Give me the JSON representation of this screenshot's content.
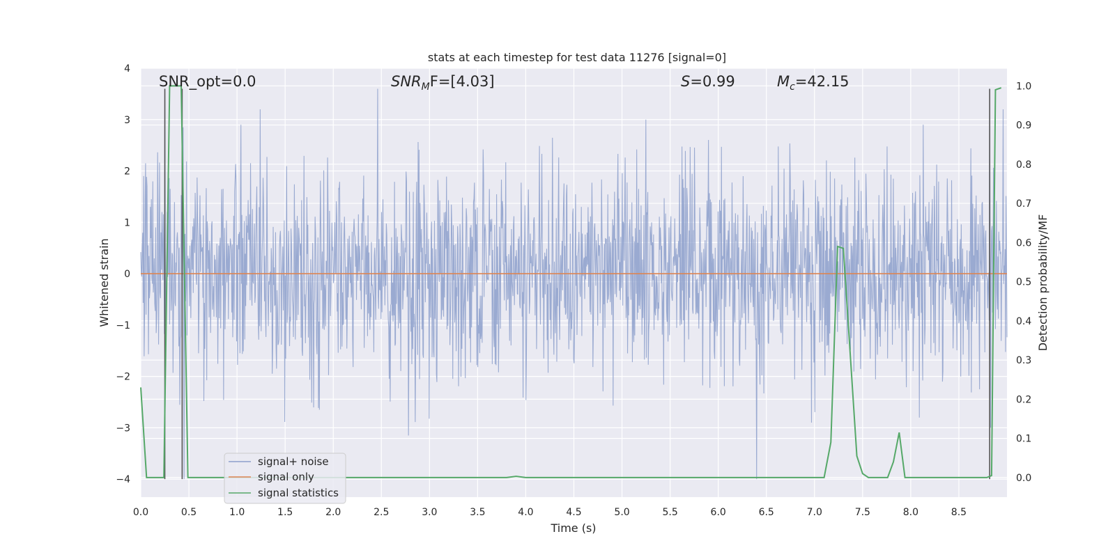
{
  "chart_data": {
    "type": "line",
    "title": "stats at each timestep for test data 11276 [signal=0]",
    "xlabel": "Time (s)",
    "ylabel": "Whitened strain",
    "ylabel_right": "Detection probability/MF",
    "xlim": [
      0.0,
      9.0
    ],
    "ylim": [
      -4.35,
      4.0
    ],
    "ylim_right": [
      -0.05,
      1.045
    ],
    "x_ticks": [
      "0.0",
      "0.5",
      "1.0",
      "1.5",
      "2.0",
      "2.5",
      "3.0",
      "3.5",
      "4.0",
      "4.5",
      "5.0",
      "5.5",
      "6.0",
      "6.5",
      "7.0",
      "7.5",
      "8.0",
      "8.5"
    ],
    "y_ticks": [
      "4",
      "3",
      "2",
      "1",
      "0",
      "−1",
      "−2",
      "−3",
      "−4"
    ],
    "y_ticks_right": [
      "1.0",
      "0.9",
      "0.8",
      "0.7",
      "0.6",
      "0.5",
      "0.4",
      "0.3",
      "0.2",
      "0.1",
      "0.0"
    ],
    "grid": true,
    "legend_position": "lower-left",
    "annotations": {
      "snr_opt": "SNR_opt=0.0",
      "snr_mf_prefix": "SNR",
      "snr_mf_sub": "M",
      "snr_mf_suffix": "F=[4.03]",
      "s_prefix": "S",
      "s_suffix": "=0.99",
      "mc_prefix": "M",
      "mc_sub": "c",
      "mc_suffix": "=42.15"
    },
    "series": [
      {
        "name": "signal+ noise",
        "axis": "left",
        "color": "#8c9fcb",
        "noise_amplitude": 1.3,
        "spikes": [
          [
            0.22,
            1.2
          ],
          [
            0.25,
            3.6
          ],
          [
            0.44,
            2.85
          ],
          [
            0.45,
            -4.0
          ],
          [
            1.24,
            3.2
          ],
          [
            2.46,
            3.6
          ],
          [
            2.78,
            -3.15
          ],
          [
            5.25,
            3.0
          ],
          [
            6.4,
            -4.0
          ],
          [
            7.32,
            -0.9
          ],
          [
            8.82,
            3.6
          ],
          [
            8.83,
            -3.0
          ],
          [
            8.96,
            3.2
          ]
        ]
      },
      {
        "name": "signal only",
        "axis": "left",
        "color": "#dd8452",
        "x": [
          0.0,
          9.0
        ],
        "values": [
          0.0,
          0.0
        ]
      },
      {
        "name": "signal statistics",
        "axis": "right",
        "color": "#55a868",
        "x": [
          0.0,
          0.06,
          0.24,
          0.3,
          0.42,
          0.49,
          0.55,
          0.8,
          0.85,
          3.8,
          3.9,
          4.0,
          7.1,
          7.17,
          7.24,
          7.3,
          7.44,
          7.5,
          7.56,
          7.76,
          7.82,
          7.88,
          7.94,
          8.0,
          8.79,
          8.84,
          8.88,
          8.94
        ],
        "values": [
          0.23,
          0.0,
          0.0,
          1.0,
          1.0,
          0.0,
          0.0,
          0.0,
          0.0,
          0.0,
          0.003,
          0.0,
          0.0,
          0.09,
          0.59,
          0.585,
          0.055,
          0.01,
          0.0,
          0.0,
          0.04,
          0.115,
          0.0,
          0.0,
          0.0,
          0.005,
          0.99,
          0.995
        ]
      }
    ],
    "vertical_markers": {
      "color": "#555555",
      "x": [
        0.25,
        0.43,
        8.82
      ]
    }
  }
}
